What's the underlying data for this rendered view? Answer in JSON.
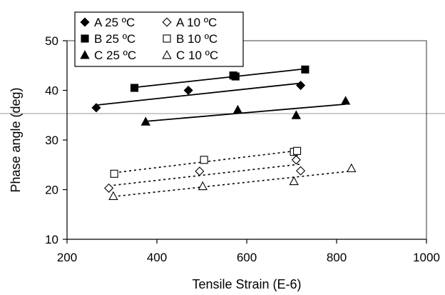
{
  "chart_data": {
    "type": "scatter",
    "title": "",
    "xlabel": "Tensile Strain (E-6)",
    "ylabel": "Phase angle (deg)",
    "xlim": [
      200,
      1000
    ],
    "ylim": [
      10,
      50
    ],
    "xticks": [
      200,
      400,
      600,
      800,
      1000
    ],
    "yticks": [
      10,
      20,
      30,
      40,
      50
    ],
    "grid": false,
    "legend_position": "top-left",
    "series": [
      {
        "name": "A 25 ºC",
        "marker": "diamond",
        "filled": true,
        "trend": "solid",
        "x": [
          265,
          470,
          720
        ],
        "y": [
          36.5,
          40.0,
          41.0
        ]
      },
      {
        "name": "A 10 ºC",
        "marker": "diamond",
        "filled": false,
        "trend": "dotted",
        "x": [
          293,
          495,
          710,
          720
        ],
        "y": [
          20.3,
          23.7,
          26.0,
          23.8
        ]
      },
      {
        "name": "B 25 ºC",
        "marker": "square",
        "filled": true,
        "trend": "solid",
        "x": [
          350,
          570,
          575,
          730
        ],
        "y": [
          40.5,
          43.0,
          42.8,
          44.2
        ]
      },
      {
        "name": "B 10 ºC",
        "marker": "square",
        "filled": false,
        "trend": "dotted",
        "x": [
          305,
          505,
          705,
          712
        ],
        "y": [
          23.2,
          26.0,
          27.6,
          27.8
        ]
      },
      {
        "name": "C 25 ºC",
        "marker": "triangle",
        "filled": true,
        "trend": "solid",
        "x": [
          375,
          580,
          710,
          820
        ],
        "y": [
          33.7,
          36.1,
          35.0,
          37.9
        ]
      },
      {
        "name": "C 10 ºC",
        "marker": "triangle",
        "filled": false,
        "trend": "dotted",
        "x": [
          303,
          502,
          705,
          833
        ],
        "y": [
          18.7,
          20.7,
          21.7,
          24.3
        ]
      }
    ]
  }
}
